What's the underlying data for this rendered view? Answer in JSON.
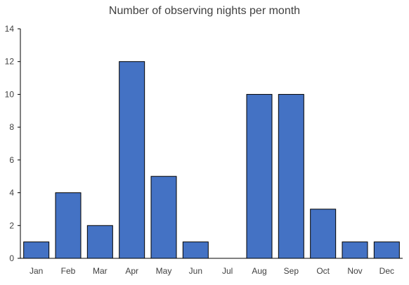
{
  "chart_data": {
    "type": "bar",
    "title": "Number of observing nights per month",
    "categories": [
      "Jan",
      "Feb",
      "Mar",
      "Apr",
      "May",
      "Jun",
      "Jul",
      "Aug",
      "Sep",
      "Oct",
      "Nov",
      "Dec"
    ],
    "values": [
      1,
      4,
      2,
      12,
      5,
      1,
      0,
      10,
      10,
      3,
      1,
      1
    ],
    "xlabel": "",
    "ylabel": "",
    "ylim": [
      0,
      14
    ],
    "yticks": [
      0,
      2,
      4,
      6,
      8,
      10,
      12,
      14
    ],
    "grid": false,
    "legend": "none",
    "colors": {
      "bar_fill": "#4472c4",
      "bar_stroke": "#000000",
      "axis": "#000000",
      "text": "#404040"
    }
  }
}
